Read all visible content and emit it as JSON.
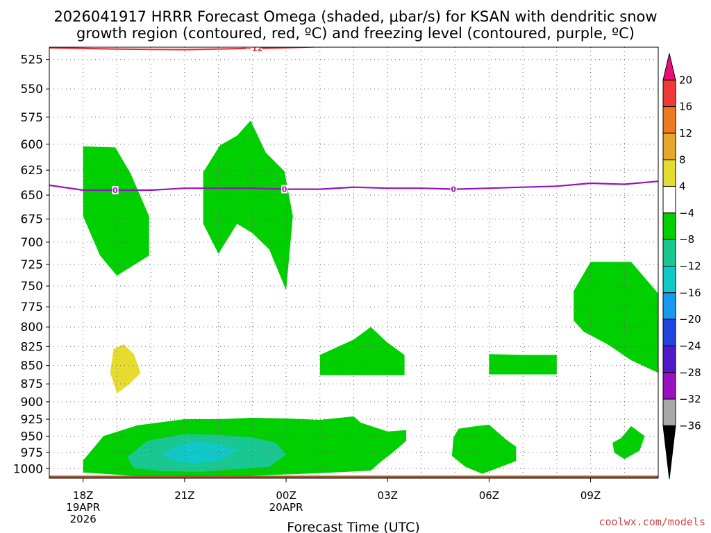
{
  "title_line1": "2026041917 HRRR Forecast Omega (shaded, μbar/s) for KSAN with dendritic snow",
  "title_line2": "growth region (contoured, red, ºC) and freezing level (contoured, purple, ºC)",
  "credit": "coolwx.com/models",
  "chart_data": {
    "type": "contour",
    "title": "2026041917 HRRR Forecast Omega (shaded, μbar/s) for KSAN with dendritic snow growth region (contoured, red, ºC) and freezing level (contoured, purple, ºC)",
    "xlabel": "Forecast Time (UTC)",
    "ylabel": "",
    "y_scale": "log",
    "y_inverted": true,
    "ylim": [
      1015,
      515
    ],
    "xlim": [
      17.0,
      35.0
    ],
    "y_ticks": [
      525,
      550,
      575,
      600,
      625,
      650,
      675,
      700,
      725,
      750,
      775,
      800,
      825,
      850,
      875,
      900,
      925,
      950,
      975,
      1000
    ],
    "x_ticks": [
      {
        "x": 18,
        "label": "18Z",
        "sub1": "19APR",
        "sub2": "2026"
      },
      {
        "x": 21,
        "label": "21Z",
        "sub1": "",
        "sub2": ""
      },
      {
        "x": 24,
        "label": "00Z",
        "sub1": "20APR",
        "sub2": ""
      },
      {
        "x": 27,
        "label": "03Z",
        "sub1": "",
        "sub2": ""
      },
      {
        "x": 30,
        "label": "06Z",
        "sub1": "",
        "sub2": ""
      },
      {
        "x": 33,
        "label": "09Z",
        "sub1": "",
        "sub2": ""
      }
    ],
    "grid": true,
    "colorbar": {
      "labels": [
        "20",
        "16",
        "12",
        "8",
        "4",
        "−4",
        "−8",
        "−12",
        "−16",
        "−20",
        "−24",
        "−28",
        "−32",
        "−36"
      ],
      "colors": [
        "#e8107a",
        "#f03a3a",
        "#ee7a20",
        "#e6a82a",
        "#e6dc30",
        "#ffffff",
        "#00d000",
        "#18c890",
        "#10c8c8",
        "#1898ee",
        "#2244dd",
        "#5018c8",
        "#9b10c0",
        "#a8a8a8",
        "#000000"
      ]
    },
    "shaded_regions": [
      {
        "level": "-4 to -8",
        "color": "#00d000",
        "points": [
          [
            18.0,
            602
          ],
          [
            18.95,
            603
          ],
          [
            19.4,
            628
          ],
          [
            19.95,
            672
          ],
          [
            19.95,
            715
          ],
          [
            19.0,
            738
          ],
          [
            18.5,
            715
          ],
          [
            18.0,
            672
          ]
        ]
      },
      {
        "level": "-4 to -8",
        "color": "#00d000",
        "points": [
          [
            21.55,
            627
          ],
          [
            22.05,
            601
          ],
          [
            22.55,
            592
          ],
          [
            22.95,
            578
          ],
          [
            23.4,
            608
          ],
          [
            23.95,
            626
          ],
          [
            24.2,
            672
          ],
          [
            24.0,
            755
          ],
          [
            23.5,
            708
          ],
          [
            23.0,
            690
          ],
          [
            22.55,
            680
          ],
          [
            22.0,
            713
          ],
          [
            21.55,
            680
          ]
        ]
      },
      {
        "level": "-4 to -8",
        "color": "#00d000",
        "points": [
          [
            35.0,
            759
          ],
          [
            34.2,
            722
          ],
          [
            33.0,
            722
          ],
          [
            32.5,
            756
          ],
          [
            32.5,
            792
          ],
          [
            32.8,
            806
          ],
          [
            33.5,
            822
          ],
          [
            34.2,
            843
          ],
          [
            35.0,
            860
          ]
        ]
      },
      {
        "level": "-4 to -8",
        "color": "#00d000",
        "points": [
          [
            25.0,
            836
          ],
          [
            26.0,
            816
          ],
          [
            26.5,
            800
          ],
          [
            27.0,
            820
          ],
          [
            27.5,
            836
          ],
          [
            27.5,
            863
          ],
          [
            25.0,
            863
          ]
        ]
      },
      {
        "level": "-4 to -8",
        "color": "#00d000",
        "points": [
          [
            30.0,
            835
          ],
          [
            31.0,
            836
          ],
          [
            32.0,
            836
          ],
          [
            32.0,
            862
          ],
          [
            30.0,
            862
          ]
        ]
      },
      {
        "level": "-4 to -8",
        "color": "#00d000",
        "points": [
          [
            18.0,
            987
          ],
          [
            18.6,
            950
          ],
          [
            19.6,
            934
          ],
          [
            21.0,
            925
          ],
          [
            22.0,
            925
          ],
          [
            23.0,
            923
          ],
          [
            24.0,
            924
          ],
          [
            25.0,
            926
          ],
          [
            26.0,
            921
          ],
          [
            26.2,
            930
          ],
          [
            27.0,
            943
          ],
          [
            27.55,
            941
          ],
          [
            27.55,
            957
          ],
          [
            27.4,
            964
          ],
          [
            27.1,
            977
          ],
          [
            26.8,
            989
          ],
          [
            26.5,
            1003
          ],
          [
            25.0,
            1007
          ],
          [
            22.0,
            1013
          ],
          [
            20.0,
            1013
          ],
          [
            18.0,
            1006
          ]
        ]
      },
      {
        "level": "-8 to -12",
        "color": "#18c890",
        "points": [
          [
            19.3,
            982
          ],
          [
            19.9,
            957
          ],
          [
            21.0,
            947
          ],
          [
            22.0,
            948
          ],
          [
            23.0,
            952
          ],
          [
            23.7,
            960
          ],
          [
            24.0,
            978
          ],
          [
            23.5,
            997
          ],
          [
            22.5,
            1001
          ],
          [
            21.5,
            1005
          ],
          [
            20.3,
            1004
          ],
          [
            19.5,
            999
          ]
        ]
      },
      {
        "level": "-12 to -16",
        "color": "#10c8c8",
        "points": [
          [
            20.3,
            978
          ],
          [
            20.8,
            964
          ],
          [
            21.3,
            958
          ],
          [
            22.0,
            962
          ],
          [
            22.6,
            972
          ],
          [
            22.0,
            988
          ],
          [
            21.3,
            991
          ],
          [
            20.8,
            989
          ]
        ]
      },
      {
        "level": "-4 to -8",
        "color": "#00d000",
        "points": [
          [
            29.5,
            936
          ],
          [
            30.0,
            933
          ],
          [
            30.5,
            955
          ],
          [
            30.8,
            966
          ],
          [
            30.8,
            988
          ],
          [
            30.2,
            1000
          ],
          [
            29.8,
            1008
          ],
          [
            29.3,
            997
          ],
          [
            28.9,
            980
          ],
          [
            28.95,
            952
          ],
          [
            29.1,
            939
          ]
        ]
      },
      {
        "level": "-4 to -8",
        "color": "#00d000",
        "points": [
          [
            33.9,
            953
          ],
          [
            34.2,
            935
          ],
          [
            34.6,
            950
          ],
          [
            34.45,
            972
          ],
          [
            34.0,
            985
          ],
          [
            33.7,
            975
          ],
          [
            33.65,
            960
          ]
        ]
      },
      {
        "level": "4 to 8",
        "color": "#e6dc30",
        "points": [
          [
            18.9,
            828
          ],
          [
            19.2,
            822
          ],
          [
            19.5,
            835
          ],
          [
            19.7,
            860
          ],
          [
            19.35,
            876
          ],
          [
            19.0,
            888
          ],
          [
            18.8,
            860
          ]
        ]
      }
    ],
    "contours": [
      {
        "name": "freezing level",
        "label": "0",
        "color": "#9b10c0",
        "points": [
          [
            17.0,
            640
          ],
          [
            18.0,
            645
          ],
          [
            19.0,
            645
          ],
          [
            20.0,
            645
          ],
          [
            21.0,
            643
          ],
          [
            22.0,
            643
          ],
          [
            23.0,
            643
          ],
          [
            24.0,
            644
          ],
          [
            25.0,
            644
          ],
          [
            26.0,
            642
          ],
          [
            27.0,
            643
          ],
          [
            28.0,
            643
          ],
          [
            29.0,
            644
          ],
          [
            30.0,
            643
          ],
          [
            31.0,
            642
          ],
          [
            32.0,
            641
          ],
          [
            33.0,
            638
          ],
          [
            34.0,
            639
          ],
          [
            35.0,
            636
          ]
        ],
        "label_x": [
          18.95,
          23.95,
          28.95
        ]
      },
      {
        "name": "dendritic snow growth",
        "label": "−12",
        "color": "#e83030",
        "points": [
          [
            17.0,
            515.5
          ],
          [
            18.0,
            516.0
          ],
          [
            19.0,
            516.5
          ],
          [
            20.0,
            516.8
          ],
          [
            21.0,
            517.0
          ],
          [
            22.0,
            516.5
          ],
          [
            22.8,
            516.0
          ],
          [
            23.5,
            515.8
          ],
          [
            24.5,
            515.0
          ],
          [
            25.5,
            514.2
          ],
          [
            26.5,
            513.5
          ],
          [
            27.4,
            512.8
          ]
        ],
        "label_x": [
          23.05
        ]
      }
    ],
    "ground": {
      "color": "#a85a2e",
      "pressure": 1015
    }
  }
}
